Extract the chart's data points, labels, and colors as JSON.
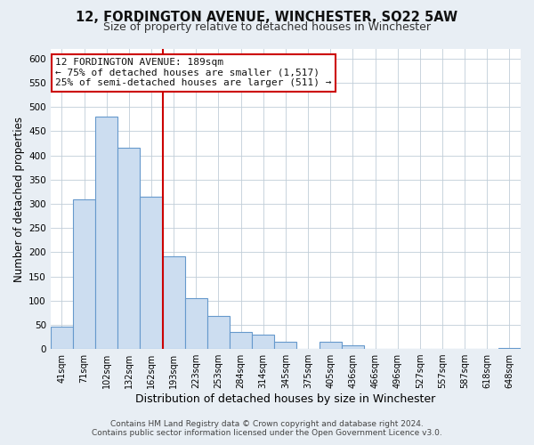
{
  "title": "12, FORDINGTON AVENUE, WINCHESTER, SO22 5AW",
  "subtitle": "Size of property relative to detached houses in Winchester",
  "xlabel": "Distribution of detached houses by size in Winchester",
  "ylabel": "Number of detached properties",
  "categories": [
    "41sqm",
    "71sqm",
    "102sqm",
    "132sqm",
    "162sqm",
    "193sqm",
    "223sqm",
    "253sqm",
    "284sqm",
    "314sqm",
    "345sqm",
    "375sqm",
    "405sqm",
    "436sqm",
    "466sqm",
    "496sqm",
    "527sqm",
    "557sqm",
    "587sqm",
    "618sqm",
    "648sqm"
  ],
  "values": [
    47,
    310,
    480,
    415,
    315,
    192,
    105,
    69,
    36,
    30,
    14,
    0,
    14,
    8,
    0,
    0,
    0,
    0,
    0,
    0,
    2
  ],
  "bar_color_fill": "#ccddf0",
  "bar_color_edge": "#6699cc",
  "vline_color": "#cc0000",
  "ylim": [
    0,
    620
  ],
  "yticks": [
    0,
    50,
    100,
    150,
    200,
    250,
    300,
    350,
    400,
    450,
    500,
    550,
    600
  ],
  "annotation_line1": "12 FORDINGTON AVENUE: 189sqm",
  "annotation_line2": "← 75% of detached houses are smaller (1,517)",
  "annotation_line3": "25% of semi-detached houses are larger (511) →",
  "annotation_box_edgecolor": "#cc0000",
  "footer_line1": "Contains HM Land Registry data © Crown copyright and database right 2024.",
  "footer_line2": "Contains public sector information licensed under the Open Government Licence v3.0.",
  "fig_bg_color": "#e8eef4",
  "plot_bg_color": "#ffffff",
  "grid_color": "#c0cdd8",
  "title_fontsize": 10.5,
  "subtitle_fontsize": 9,
  "ylabel_fontsize": 8.5,
  "xlabel_fontsize": 9
}
